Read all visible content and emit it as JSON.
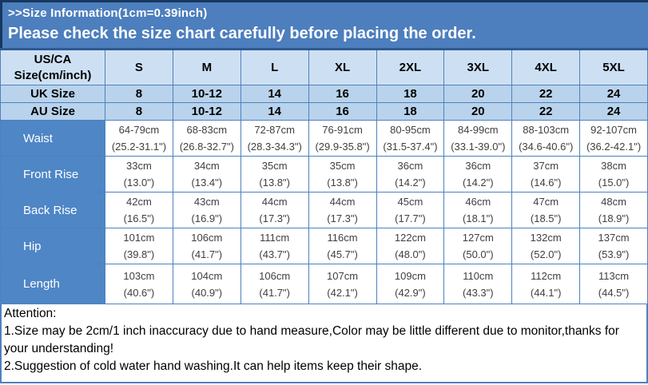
{
  "banner": {
    "title": ">>Size Information(1cm=0.39inch)",
    "subtitle": "Please check the size chart carefully before placing the order."
  },
  "size_chart": {
    "corner_label": "US/CA Size(cm/inch)",
    "columns": [
      "S",
      "M",
      "L",
      "XL",
      "2XL",
      "3XL",
      "4XL",
      "5XL"
    ],
    "uk_row": {
      "label": "UK Size",
      "values": [
        "8",
        "10-12",
        "14",
        "16",
        "18",
        "20",
        "22",
        "24"
      ]
    },
    "au_row": {
      "label": "AU Size",
      "values": [
        "8",
        "10-12",
        "14",
        "16",
        "18",
        "20",
        "22",
        "24"
      ]
    },
    "rows": [
      {
        "label": "Waist",
        "cm": [
          "64-79cm",
          "68-83cm",
          "72-87cm",
          "76-91cm",
          "80-95cm",
          "84-99cm",
          "88-103cm",
          "92-107cm"
        ],
        "in": [
          "(25.2-31.1\")",
          "(26.8-32.7\")",
          "(28.3-34.3\")",
          "(29.9-35.8\")",
          "(31.5-37.4\")",
          "(33.1-39.0\")",
          "(34.6-40.6\")",
          "(36.2-42.1\")"
        ]
      },
      {
        "label": "Front Rise",
        "cm": [
          "33cm",
          "34cm",
          "35cm",
          "35cm",
          "36cm",
          "36cm",
          "37cm",
          "38cm"
        ],
        "in": [
          "(13.0\")",
          "(13.4\")",
          "(13.8\")",
          "(13.8\")",
          "(14.2\")",
          "(14.2\")",
          "(14.6\")",
          "(15.0\")"
        ]
      },
      {
        "label": "Back Rise",
        "cm": [
          "42cm",
          "43cm",
          "44cm",
          "44cm",
          "45cm",
          "46cm",
          "47cm",
          "48cm"
        ],
        "in": [
          "(16.5\")",
          "(16.9\")",
          "(17.3\")",
          "(17.3\")",
          "(17.7\")",
          "(18.1\")",
          "(18.5\")",
          "(18.9\")"
        ]
      },
      {
        "label": "Hip",
        "cm": [
          "101cm",
          "106cm",
          "111cm",
          "116cm",
          "122cm",
          "127cm",
          "132cm",
          "137cm"
        ],
        "in": [
          "(39.8\")",
          "(41.7\")",
          "(43.7\")",
          "(45.7\")",
          "(48.0\")",
          "(50.0\")",
          "(52.0\")",
          "(53.9\")"
        ]
      },
      {
        "label": "Length",
        "cm": [
          "103cm",
          "104cm",
          "106cm",
          "107cm",
          "109cm",
          "110cm",
          "112cm",
          "113cm"
        ],
        "in": [
          "(40.6\")",
          "(40.9\")",
          "(41.7\")",
          "(42.1\")",
          "(42.9\")",
          "(43.3\")",
          "(44.1\")",
          "(44.5\")"
        ]
      }
    ]
  },
  "attention": {
    "heading": "Attention:",
    "notes": [
      "1.Size may be 2cm/1 inch inaccuracy due to hand measure,Color may be little different due to monitor,thanks for your understanding!",
      "2.Suggestion of cold water hand washing.It can help items keep their shape."
    ]
  },
  "colors": {
    "banner_blue": "#4d7ebd",
    "dark_navy_border": "#17375e",
    "cell_border_blue": "#4f81bd",
    "header_light_blue": "#cde0f3",
    "size_row_light_blue": "#b9d3ec",
    "label_column_blue": "#4e86c6",
    "data_text": "#404040"
  }
}
